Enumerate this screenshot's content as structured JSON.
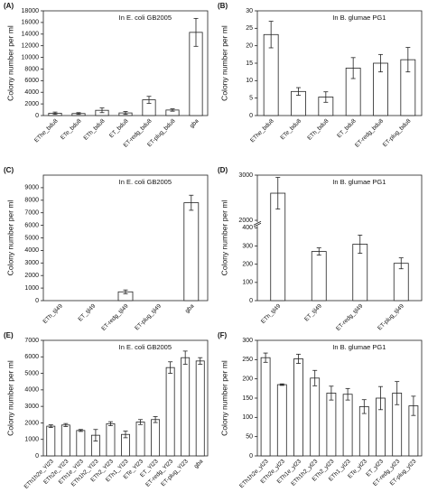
{
  "chart_data": [
    {
      "type": "bar",
      "panel": "(A)",
      "annotation": "In E. coli GB2005",
      "ylabel": "Colony number per ml",
      "categories": [
        "EThe_bdu8",
        "ETe_bdu8",
        "ETh_bdu8",
        "ET_bdu8",
        "ET-redg_bdu8",
        "ET-plug_bdu8",
        "gba"
      ],
      "values": [
        400,
        350,
        900,
        450,
        2700,
        950,
        14300
      ],
      "errors": [
        200,
        150,
        400,
        250,
        600,
        200,
        2400
      ],
      "ylim": [
        0,
        18000
      ],
      "yticks": [
        0,
        2000,
        4000,
        6000,
        8000,
        10000,
        12000,
        14000,
        16000,
        18000
      ],
      "color": "#ffffff"
    },
    {
      "type": "bar",
      "panel": "(B)",
      "annotation": "In B. glumae PG1",
      "ylabel": "Colony number per ml",
      "categories": [
        "EThe_bdu8",
        "ETe_bdu8",
        "ETh_bdu8",
        "ET_bdu8",
        "ET-redg_bdu8",
        "ET-plug_bdu8"
      ],
      "values": [
        23.2,
        6.9,
        5.3,
        13.6,
        15,
        16
      ],
      "errors": [
        3.8,
        1.1,
        1.5,
        3,
        2.5,
        3.5
      ],
      "ylim": [
        0,
        30
      ],
      "yticks": [
        0,
        5,
        10,
        15,
        20,
        25,
        30
      ],
      "color": "#ffffff"
    },
    {
      "type": "bar",
      "panel": "(C)",
      "annotation": "In E. coli GB2005",
      "ylabel": "Colony number per ml",
      "categories": [
        "ETh_tjl49",
        "ET_tjl49",
        "ET-redg_tjl49",
        "ET-plug_tjl49",
        "gba"
      ],
      "values": [
        0,
        0,
        700,
        0,
        7800
      ],
      "errors": [
        0,
        0,
        150,
        0,
        600
      ],
      "ylim": [
        0,
        10000
      ],
      "yticks": [
        0,
        1000,
        2000,
        3000,
        4000,
        5000,
        6000,
        7000,
        8000,
        9000
      ],
      "color": "#ffffff"
    },
    {
      "type": "bar",
      "panel": "(D)",
      "annotation": "In B. glumae PG1",
      "ylabel": "Colony number per ml",
      "categories": [
        "ETh_tjl49",
        "ET_tjl49",
        "ET-redg_tjl49",
        "ET-plug_tjl49"
      ],
      "values": [
        2600,
        270,
        310,
        205
      ],
      "errors": [
        350,
        20,
        50,
        30
      ],
      "ylim": [
        0,
        3000
      ],
      "ybreak": [
        400,
        2000
      ],
      "yticks": [
        0,
        100,
        200,
        300,
        400,
        2000,
        3000
      ],
      "color": "#ffffff"
    },
    {
      "type": "bar",
      "panel": "(E)",
      "annotation": "In E. coli GB2005",
      "ylabel": "Colony number per ml",
      "categories": [
        "ETh1h2e_Yl23",
        "ETh2e_Yl23",
        "ETh1e_Yl23",
        "ETh1h2_Yl23",
        "ETh2_Yl23",
        "ETh1_Yl23",
        "ETe_Yl23",
        "ET_Yl23",
        "ET-redg_Yl23",
        "ET-plug_Yl23",
        "gba"
      ],
      "values": [
        1800,
        1870,
        1540,
        1250,
        1950,
        1300,
        2050,
        2200,
        5350,
        5950,
        5750
      ],
      "errors": [
        80,
        90,
        60,
        350,
        120,
        200,
        150,
        180,
        350,
        400,
        200
      ],
      "ylim": [
        0,
        7000
      ],
      "yticks": [
        0,
        1000,
        2000,
        3000,
        4000,
        5000,
        6000,
        7000
      ],
      "color": "#ffffff"
    },
    {
      "type": "bar",
      "panel": "(F)",
      "annotation": "In B. glumae PG1",
      "ylabel": "Colony number per ml",
      "categories": [
        "ETh1h2e_yl23",
        "ETh2e_yl23",
        "ETh1e_yl23",
        "ETh1h2_yl23",
        "ETh2_yl23",
        "ETh1_yl23",
        "ETe_yl23",
        "ET_yl23",
        "ET-redg_yl23",
        "ET-plug_yl23"
      ],
      "values": [
        255,
        185,
        252,
        202,
        163,
        160,
        128,
        150,
        163,
        130
      ],
      "errors": [
        12,
        2,
        12,
        20,
        18,
        15,
        18,
        30,
        30,
        25
      ],
      "ylim": [
        0,
        300
      ],
      "yticks": [
        0,
        50,
        100,
        150,
        200,
        250,
        300
      ],
      "color": "#ffffff"
    }
  ]
}
